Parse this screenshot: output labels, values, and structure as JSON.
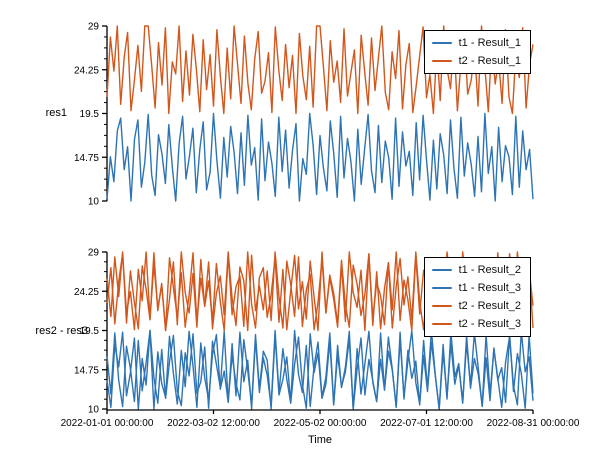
{
  "figure": {
    "xlabel": "Time",
    "background": "#ffffff",
    "axis_color": "#000000",
    "x_tick_labels": [
      "2022-01-01 00:00:00",
      "2022-03-02 12:00:00",
      "2022-05-02 00:00:00",
      "2022-07-01 12:00:00",
      "2022-08-31 00:00:00"
    ],
    "colors": {
      "blue": "#2e74b4",
      "orange": "#d2571d"
    }
  },
  "chart_data": [
    {
      "type": "line",
      "ylabel": "res1",
      "ylim": [
        10,
        29
      ],
      "yticks": [
        10,
        14.75,
        19.5,
        24.25,
        29
      ],
      "ytick_labels": [
        "10",
        "14.75",
        "19.5",
        "24.25",
        "29"
      ],
      "minor_ticks_per_interval": 3,
      "x_range": [
        "2022-01-01 00:00:00",
        "2022-08-31 00:00:00"
      ],
      "grid": false,
      "legend_position": "top-right",
      "series": [
        {
          "name": "t1 - Result_1",
          "color": "#2e74b4",
          "values": [
            10.2,
            14.8,
            12.1,
            17.6,
            19.0,
            13.4,
            15.9,
            10.0,
            16.7,
            18.8,
            11.5,
            14.2,
            19.4,
            12.8,
            10.6,
            17.2,
            15.1,
            11.9,
            18.3,
            13.7,
            10.0,
            16.2,
            19.2,
            12.4,
            14.9,
            17.9,
            10.9,
            15.6,
            18.6,
            11.2,
            13.1,
            19.5,
            14.4,
            10.3,
            16.9,
            12.6,
            18.1,
            15.3,
            10.8,
            17.4,
            11.7,
            19.3,
            13.9,
            15.8,
            10.1,
            18.9,
            12.2,
            16.4,
            14.1,
            10.5,
            19.1,
            13.2,
            17.7,
            11.4,
            15.5,
            18.4,
            10.0,
            14.6,
            12.9,
            19.5,
            16.1,
            10.7,
            17.1,
            13.6,
            11.1,
            18.7,
            15.2,
            10.4,
            19.2,
            12.5,
            16.8,
            14.3,
            10.0,
            17.8,
            11.8,
            15.7,
            19.4,
            13.3,
            10.9,
            18.2,
            12.0,
            16.5,
            14.7,
            10.2,
            19.0,
            11.6,
            17.5,
            13.8,
            15.4,
            10.6,
            18.5,
            12.3,
            19.3,
            14.5,
            10.1,
            16.6,
            11.3,
            17.3,
            15.0,
            10.8,
            18.8,
            13.5,
            10.3,
            19.1,
            12.7,
            16.3,
            14.0,
            10.5,
            17.0,
            11.0,
            19.5,
            13.0,
            15.9,
            10.0,
            18.0,
            12.1,
            16.0,
            14.8,
            10.7,
            19.2,
            11.5,
            17.6,
            13.4,
            15.6,
            10.2
          ]
        },
        {
          "name": "t2 - Result_1",
          "color": "#d2571d",
          "values": [
            21.3,
            27.8,
            24.1,
            29.0,
            20.5,
            25.6,
            28.3,
            19.8,
            23.2,
            26.9,
            21.9,
            29.0,
            29.0,
            24.7,
            20.1,
            27.2,
            22.6,
            28.8,
            19.5,
            25.1,
            23.8,
            29.0,
            20.8,
            26.3,
            21.5,
            28.1,
            24.4,
            19.7,
            27.5,
            22.1,
            25.9,
            20.3,
            28.6,
            23.5,
            19.5,
            26.6,
            21.1,
            29.0,
            24.9,
            20.6,
            27.9,
            22.8,
            19.9,
            25.4,
            28.4,
            21.7,
            23.0,
            26.1,
            19.6,
            28.9,
            24.2,
            20.9,
            27.0,
            22.3,
            25.8,
            19.5,
            28.2,
            23.6,
            21.0,
            26.8,
            20.2,
            29.0,
            29.0,
            24.6,
            19.8,
            27.4,
            22.9,
            25.2,
            20.7,
            28.7,
            21.4,
            23.9,
            26.4,
            19.5,
            28.0,
            24.0,
            20.4,
            27.7,
            22.0,
            25.5,
            29.0,
            21.8,
            19.9,
            26.2,
            23.3,
            28.5,
            20.0,
            24.8,
            27.1,
            19.6,
            22.5,
            25.7,
            28.9,
            21.2,
            23.7,
            19.5,
            26.7,
            20.9,
            29.0,
            24.3,
            22.2,
            27.6,
            19.8,
            25.0,
            28.2,
            21.6,
            23.1,
            26.5,
            20.3,
            29.0,
            24.5,
            19.7,
            27.3,
            22.7,
            25.3,
            20.6,
            28.6,
            21.3,
            19.5,
            26.0,
            23.4,
            28.8,
            20.1,
            24.9,
            27.0
          ]
        }
      ]
    },
    {
      "type": "line",
      "ylabel": "res2 - res3",
      "ylim": [
        10,
        29
      ],
      "yticks": [
        10,
        14.75,
        19.5,
        24.25,
        29
      ],
      "ytick_labels": [
        "10",
        "14.75",
        "19.5",
        "24.25",
        "29"
      ],
      "minor_ticks_per_interval": 3,
      "x_range": [
        "2022-01-01 00:00:00",
        "2022-08-31 00:00:00"
      ],
      "grid": false,
      "legend_position": "top-right",
      "series": [
        {
          "name": "t1 - Result_2",
          "color": "#2e74b4",
          "values": [
            13.5,
            10.2,
            17.8,
            15.1,
            19.3,
            11.6,
            14.4,
            18.6,
            10.0,
            16.1,
            12.9,
            19.5,
            13.8,
            10.7,
            17.2,
            11.3,
            15.7,
            18.9,
            12.2,
            10.4,
            16.8,
            14.0,
            19.1,
            11.9,
            13.3,
            17.5,
            10.1,
            18.2,
            15.4,
            12.6,
            19.4,
            10.9,
            16.5,
            13.1,
            11.1,
            18.4,
            14.7,
            10.5,
            19.0,
            12.4,
            17.0,
            15.9,
            10.0,
            18.8,
            11.7,
            13.6,
            16.3,
            10.8,
            19.5,
            14.2,
            12.0,
            17.7,
            10.3,
            15.2,
            18.1,
            11.4,
            13.9,
            19.2,
            10.6,
            16.6,
            12.7,
            14.5,
            18.5,
            10.0,
            17.3,
            11.8,
            15.5,
            19.4,
            13.2,
            10.9,
            16.0,
            12.3,
            18.7,
            14.8,
            10.2,
            19.3,
            11.2,
            17.1,
            13.7,
            15.8,
            10.5,
            18.3,
            12.5,
            19.5,
            14.1,
            10.0,
            16.9,
            11.5,
            17.9,
            13.0,
            15.3,
            10.7,
            18.0,
            12.8,
            19.2,
            14.9,
            10.3,
            16.2,
            11.0,
            17.4,
            13.5,
            15.0,
            10.8,
            19.0,
            12.1,
            16.7,
            14.3,
            10.1,
            18.9,
            11.9
          ]
        },
        {
          "name": "t1 - Result_3",
          "color": "#2e74b4",
          "values": [
            16.4,
            11.8,
            19.2,
            13.5,
            10.3,
            17.6,
            14.9,
            10.9,
            18.3,
            12.2,
            15.6,
            19.5,
            10.0,
            16.9,
            13.1,
            11.4,
            18.8,
            14.3,
            10.6,
            17.1,
            12.7,
            19.4,
            15.2,
            10.2,
            18.0,
            13.8,
            11.1,
            16.6,
            19.0,
            12.4,
            14.6,
            10.8,
            17.9,
            11.6,
            19.3,
            13.3,
            15.9,
            10.0,
            18.5,
            12.0,
            16.2,
            14.1,
            10.4,
            19.5,
            11.9,
            17.3,
            13.6,
            10.7,
            15.4,
            18.7,
            12.9,
            10.1,
            19.1,
            14.4,
            16.8,
            11.3,
            13.0,
            18.2,
            10.5,
            17.7,
            12.6,
            15.1,
            19.4,
            10.0,
            14.8,
            18.6,
            11.7,
            16.0,
            13.4,
            10.9,
            19.2,
            12.3,
            17.0,
            14.7,
            10.3,
            18.4,
            11.5,
            15.8,
            19.5,
            13.2,
            10.6,
            16.5,
            12.1,
            18.1,
            14.0,
            10.0,
            17.8,
            11.2,
            19.3,
            13.9,
            15.5,
            10.8,
            18.9,
            12.5,
            16.1,
            14.2,
            10.4,
            19.0,
            11.8,
            17.2,
            13.7,
            10.2,
            15.7,
            18.8,
            12.8,
            10.5,
            19.4,
            14.5,
            16.3,
            11.0
          ]
        },
        {
          "name": "t2 - Result_2",
          "color": "#d2571d",
          "values": [
            25.8,
            21.2,
            28.4,
            23.6,
            29.0,
            20.4,
            26.7,
            22.9,
            19.7,
            27.3,
            24.5,
            20.8,
            28.9,
            21.9,
            25.2,
            19.5,
            23.3,
            27.8,
            20.2,
            29.0,
            24.1,
            21.6,
            26.4,
            19.9,
            28.1,
            22.4,
            25.5,
            20.6,
            27.6,
            23.0,
            19.5,
            28.7,
            21.4,
            24.8,
            26.1,
            20.0,
            29.0,
            22.7,
            19.8,
            25.9,
            27.1,
            21.1,
            23.8,
            28.3,
            20.5,
            26.9,
            19.6,
            24.3,
            28.6,
            22.1,
            25.4,
            20.9,
            27.9,
            23.5,
            19.5,
            29.0,
            21.7,
            26.2,
            24.0,
            20.3,
            28.0,
            22.6,
            19.9,
            27.4,
            25.1,
            21.3,
            23.9,
            28.8,
            20.1,
            26.6,
            19.7,
            24.6,
            27.7,
            22.0,
            29.0,
            20.7,
            25.6,
            23.2,
            19.5,
            28.5,
            21.5,
            26.8,
            24.4,
            20.0,
            27.2,
            22.8,
            19.8,
            29.0,
            25.3,
            21.0,
            23.4,
            28.2,
            20.4,
            26.0,
            19.6,
            24.7,
            27.5,
            22.3,
            25.7,
            20.8,
            28.9,
            21.8,
            23.1,
            26.3,
            19.9,
            29.0,
            24.2,
            20.2,
            27.0,
            22.5
          ]
        },
        {
          "name": "t2 - Result_3",
          "color": "#d2571d",
          "values": [
            22.8,
            27.1,
            20.3,
            25.4,
            28.8,
            21.7,
            24.2,
            19.6,
            26.9,
            23.1,
            29.0,
            20.9,
            27.5,
            22.2,
            25.0,
            19.5,
            28.3,
            24.7,
            21.1,
            26.5,
            19.9,
            23.8,
            28.9,
            20.5,
            25.8,
            22.5,
            27.8,
            19.7,
            24.0,
            26.1,
            21.4,
            29.0,
            23.4,
            20.1,
            27.2,
            25.5,
            19.5,
            28.6,
            21.9,
            24.9,
            22.0,
            26.7,
            20.7,
            29.0,
            23.6,
            19.8,
            27.9,
            25.1,
            21.2,
            28.4,
            20.0,
            24.4,
            26.3,
            19.6,
            22.9,
            28.1,
            21.6,
            25.9,
            23.3,
            19.9,
            27.4,
            20.6,
            29.0,
            24.1,
            22.3,
            26.8,
            19.5,
            28.7,
            21.0,
            25.3,
            23.7,
            20.2,
            27.7,
            19.8,
            24.8,
            28.2,
            22.6,
            26.0,
            20.8,
            29.0,
            23.0,
            19.6,
            25.6,
            27.6,
            21.3,
            24.3,
            19.9,
            28.5,
            22.1,
            26.4,
            20.4,
            29.0,
            23.9,
            21.8,
            27.0,
            19.5,
            25.2,
            28.0,
            20.9,
            24.6,
            22.4,
            26.6,
            19.7,
            28.8,
            21.5,
            23.5,
            25.7,
            20.3,
            27.3,
            19.8
          ]
        }
      ]
    }
  ]
}
